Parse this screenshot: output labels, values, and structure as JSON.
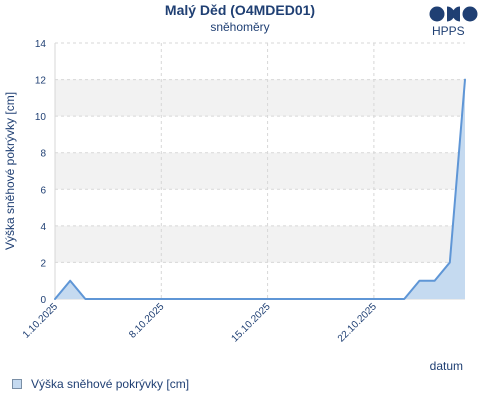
{
  "header": {
    "title": "Malý Děd (O4MDED01)",
    "subtitle": "sněhoměry",
    "logo_text": "HPPS"
  },
  "legend": {
    "label": "Výška sněhové pokrývky [cm]"
  },
  "colors": {
    "text": "#1f3f73",
    "line": "#5f96d6",
    "fill": "#c5daf0",
    "band": "#f2f2f2",
    "grid": "#d7d7d7"
  },
  "chart_data": {
    "type": "area",
    "title": "Malý Děd (O4MDED01)",
    "subtitle": "sněhoměry",
    "xlabel": "datum",
    "ylabel": "Výška sněhové pokrývky [cm]",
    "ylim": [
      0,
      14
    ],
    "yticks": [
      0,
      2,
      4,
      6,
      8,
      10,
      12,
      14
    ],
    "xlim": [
      "2025-10-01",
      "2025-10-28"
    ],
    "xticks": [
      "1.10.2025",
      "8.10.2025",
      "15.10.2025",
      "22.10.2025"
    ],
    "legend_position": "bottom-left",
    "grid": true,
    "series": [
      {
        "name": "Výška sněhové pokrývky [cm]",
        "x": [
          "2025-10-01",
          "2025-10-02",
          "2025-10-03",
          "2025-10-04",
          "2025-10-05",
          "2025-10-06",
          "2025-10-07",
          "2025-10-08",
          "2025-10-09",
          "2025-10-10",
          "2025-10-11",
          "2025-10-12",
          "2025-10-13",
          "2025-10-14",
          "2025-10-15",
          "2025-10-16",
          "2025-10-17",
          "2025-10-18",
          "2025-10-19",
          "2025-10-20",
          "2025-10-21",
          "2025-10-22",
          "2025-10-23",
          "2025-10-24",
          "2025-10-25",
          "2025-10-26",
          "2025-10-27",
          "2025-10-28"
        ],
        "values": [
          0,
          1,
          0,
          0,
          0,
          0,
          0,
          0,
          0,
          0,
          0,
          0,
          0,
          0,
          0,
          0,
          0,
          0,
          0,
          0,
          0,
          0,
          0,
          0,
          1,
          1,
          2,
          12
        ]
      }
    ]
  }
}
